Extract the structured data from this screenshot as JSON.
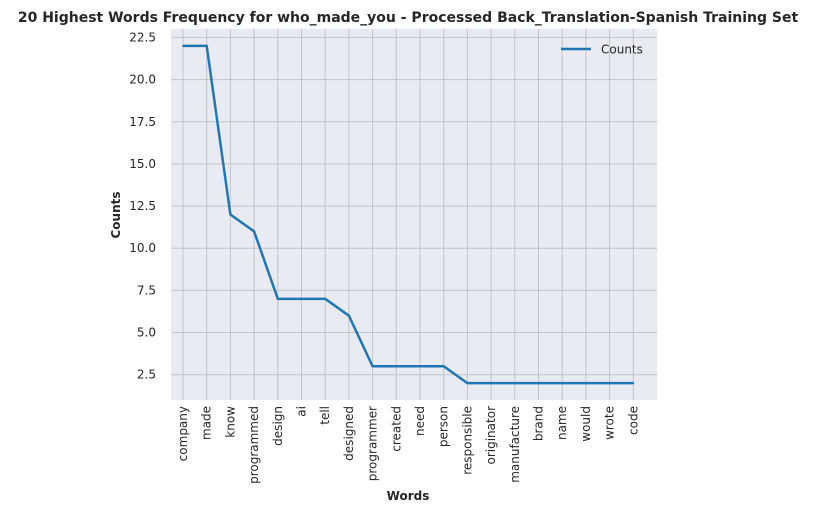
{
  "chart_data": {
    "type": "line",
    "title": "20 Highest Words Frequency for who_made_you - Processed Back_Translation-Spanish Training Set",
    "xlabel": "Words",
    "ylabel": "Counts",
    "categories": [
      "company",
      "made",
      "know",
      "programmed",
      "design",
      "ai",
      "tell",
      "designed",
      "programmer",
      "created",
      "need",
      "person",
      "responsible",
      "originator",
      "manufacture",
      "brand",
      "name",
      "would",
      "wrote",
      "code"
    ],
    "series": [
      {
        "name": "Counts",
        "color": "#1f77b4",
        "values": [
          22,
          22,
          12,
          11,
          7,
          7,
          7,
          6,
          3,
          3,
          3,
          3,
          2,
          2,
          2,
          2,
          2,
          2,
          2,
          2
        ]
      }
    ],
    "ylim": [
      1.0,
      23.0
    ],
    "yticks": [
      2.5,
      5.0,
      7.5,
      10.0,
      12.5,
      15.0,
      17.5,
      20.0,
      22.5
    ],
    "ytick_labels": [
      "2.5",
      "5.0",
      "7.5",
      "10.0",
      "12.5",
      "15.0",
      "17.5",
      "20.0",
      "22.5"
    ],
    "grid": true,
    "legend": "top-right",
    "background_color": "#eaeaf2",
    "grid_color": "#c4c4c8"
  }
}
